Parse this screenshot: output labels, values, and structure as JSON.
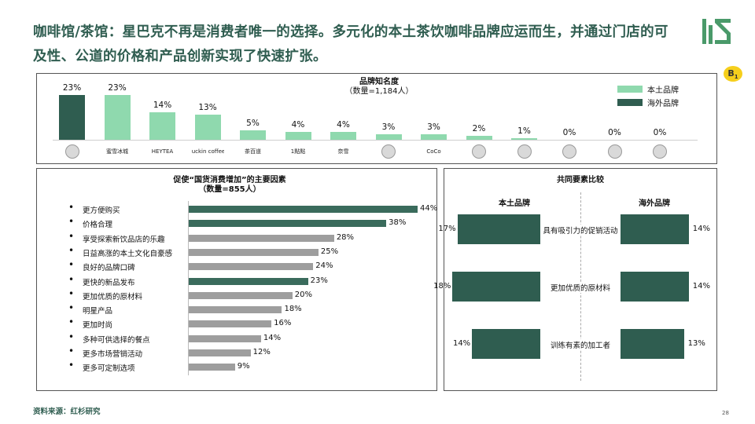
{
  "headline": "咖啡馆/茶馆：星巴克不再是消费者唯一的选择。多元化的本土茶饮咖啡品牌应运而生，并通过门店的可及性、公道的价格和产品创新实现了快速扩张。",
  "badge": {
    "main": "B",
    "sub": "1"
  },
  "colors": {
    "domestic": "#8fd9ae",
    "foreign": "#2f5d50",
    "driver_highlight": "#3a6b5c",
    "driver_other": "#9e9e9e",
    "accent": "#2f5d50"
  },
  "chart_data": [
    {
      "type": "bar",
      "title": "品牌知名度",
      "subtitle": "（数量=1,184人）",
      "legend": [
        {
          "name": "本土品牌",
          "color": "#8fd9ae"
        },
        {
          "name": "海外品牌",
          "color": "#2f5d50"
        }
      ],
      "legend_position": "top-right",
      "value_suffix": "%",
      "brand_logos": [
        {
          "icon": "starbucks-logo",
          "text": ""
        },
        {
          "icon": "mixue-logo",
          "text": "蜜雪冰城"
        },
        {
          "icon": "heytea-logo",
          "text": "HEYTEA"
        },
        {
          "icon": "luckin-logo",
          "text": "luckin coffee"
        },
        {
          "icon": "chabaidao-logo",
          "text": "茶百道"
        },
        {
          "icon": "yidiandian-logo",
          "text": "1點點"
        },
        {
          "icon": "nayuki-logo",
          "text": "奈雪"
        },
        {
          "icon": "brand-8-logo",
          "text": ""
        },
        {
          "icon": "coco-logo",
          "text": "CoCo"
        },
        {
          "icon": "brand-10-logo",
          "text": ""
        },
        {
          "icon": "brand-11-logo",
          "text": ""
        },
        {
          "icon": "brand-12-logo",
          "text": ""
        },
        {
          "icon": "brand-13-logo",
          "text": ""
        },
        {
          "icon": "brand-14-logo",
          "text": ""
        }
      ],
      "values": [
        23,
        23,
        14,
        13,
        5,
        4,
        4,
        3,
        3,
        2,
        1,
        0,
        0,
        0
      ],
      "origin": [
        "foreign",
        "domestic",
        "domestic",
        "domestic",
        "domestic",
        "domestic",
        "domestic",
        "domestic",
        "domestic",
        "domestic",
        "domestic",
        "domestic",
        "domestic",
        "domestic"
      ],
      "ylim": [
        0,
        25
      ]
    },
    {
      "type": "bar",
      "orientation": "horizontal",
      "title": "促使“国货消费增加”的主要因素",
      "subtitle": "（数量=855人）",
      "value_suffix": "%",
      "categories": [
        "更方便购买",
        "价格合理",
        "享受探索新饮品店的乐趣",
        "日益高涨的本土文化自豪感",
        "良好的品牌口碑",
        "更快的新品发布",
        "更加优质的原材料",
        "明星产品",
        "更加时尚",
        "多种可供选择的餐点",
        "更多市场营销活动",
        "更多可定制选项"
      ],
      "values": [
        44,
        38,
        28,
        25,
        24,
        23,
        20,
        18,
        16,
        14,
        12,
        9
      ],
      "highlight": [
        true,
        true,
        false,
        false,
        false,
        true,
        false,
        false,
        false,
        false,
        false,
        false
      ],
      "xlim": [
        0,
        44
      ]
    },
    {
      "type": "bar",
      "orientation": "horizontal-diverging",
      "title": "共同要素比较",
      "left_header": "本土品牌",
      "right_header": "海外品牌",
      "value_suffix": "%",
      "categories": [
        "具有吸引力的促销活动",
        "更加优质的原材料",
        "训练有素的加工者"
      ],
      "series": [
        {
          "name": "本土品牌",
          "values": [
            17,
            18,
            14
          ]
        },
        {
          "name": "海外品牌",
          "values": [
            14,
            14,
            13
          ]
        }
      ]
    }
  ],
  "source": "资料来源：红杉研究",
  "page_number": "28"
}
